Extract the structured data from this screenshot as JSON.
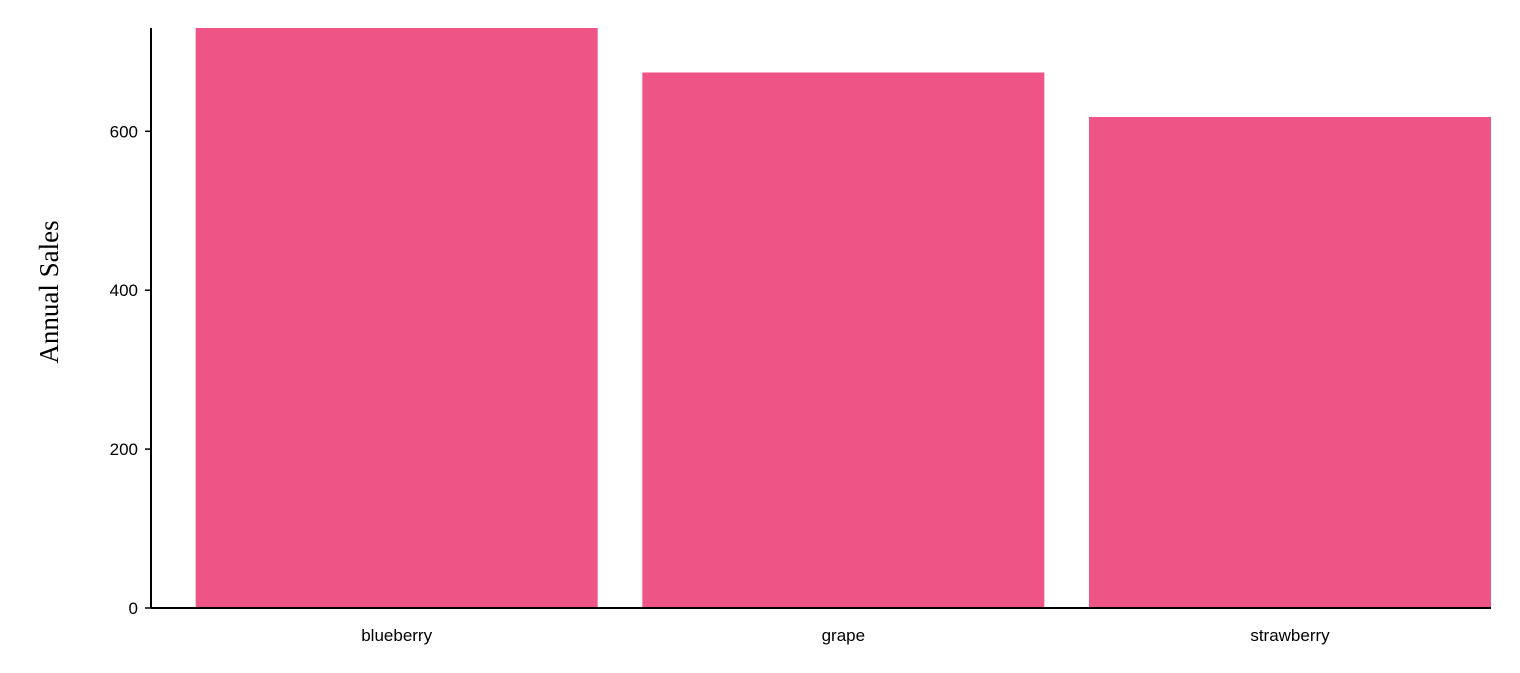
{
  "chart_data": {
    "type": "bar",
    "categories": [
      "blueberry",
      "grape",
      "strawberry"
    ],
    "values": [
      730,
      674,
      618
    ],
    "title": "",
    "xlabel": "",
    "ylabel": "Annual Sales",
    "ylim": [
      0,
      730
    ],
    "yticks": [
      0,
      200,
      400,
      600
    ],
    "bar_color": "#ee5486",
    "grid": false,
    "legend": "none"
  }
}
